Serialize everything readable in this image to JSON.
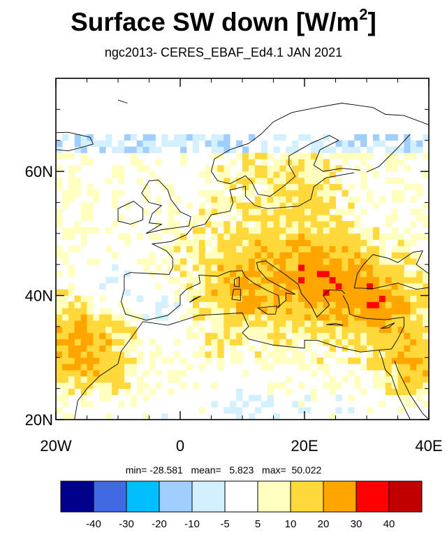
{
  "title_main": "Surface SW down [W/m",
  "title_sup": "2",
  "title_close": "]",
  "subtitle": "ngc2013- CERES_EBAF_Ed4.1  JAN 2021",
  "chart_data": {
    "type": "heatmap",
    "variable": "Surface SW down",
    "units": "W/m2",
    "projection": "cylindrical equidistant",
    "lon_range": [
      -20,
      40
    ],
    "lat_range": [
      20,
      75
    ],
    "xticks": [
      {
        "value": -20,
        "label": "20W"
      },
      {
        "value": 0,
        "label": "0"
      },
      {
        "value": 20,
        "label": "20E"
      },
      {
        "value": 40,
        "label": "40E"
      }
    ],
    "yticks": [
      {
        "value": 20,
        "label": "20N"
      },
      {
        "value": 40,
        "label": "40N"
      },
      {
        "value": 60,
        "label": "60N"
      }
    ],
    "stats": {
      "min": "-28.581",
      "mean": "5.823",
      "max": "50.022"
    },
    "colorbar": {
      "labels": [
        "-40",
        "-30",
        "-20",
        "-10",
        "-5",
        "5",
        "10",
        "20",
        "30",
        "40"
      ],
      "colors": [
        "#00008b",
        "#4169e1",
        "#00bfff",
        "#a0cfff",
        "#d2f0ff",
        "#ffffff",
        "#ffffc0",
        "#ffd93b",
        "#ffa500",
        "#ff0000",
        "#c00000"
      ]
    }
  },
  "stats_text": "min= -28.581   mean=   5.823   max=  50.022"
}
